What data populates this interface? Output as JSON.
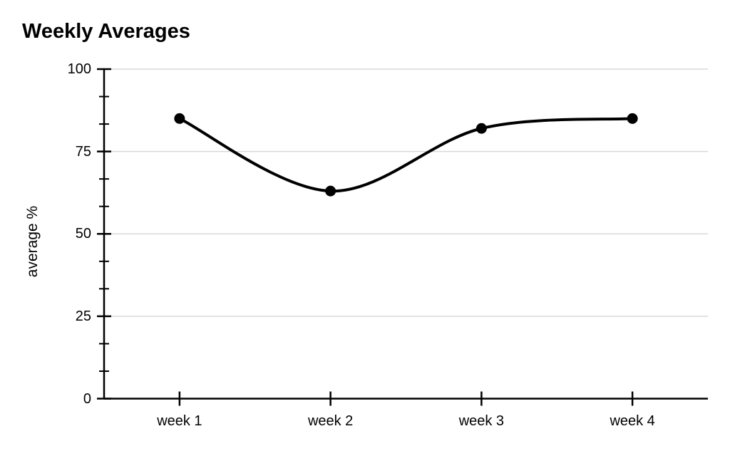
{
  "chart_data": {
    "type": "line",
    "smooth": true,
    "title": "Weekly Averages",
    "categories": [
      "week 1",
      "week 2",
      "week 3",
      "week 4"
    ],
    "values": [
      85,
      63,
      82,
      85
    ],
    "xlabel": "",
    "ylabel": "average %",
    "ylim": [
      0,
      100
    ],
    "yticks": [
      0,
      25,
      50,
      75,
      100
    ],
    "ytick_labels": [
      "0",
      "25",
      "50",
      "75",
      "100"
    ],
    "minor_ticks_per_interval": 2,
    "grid": "horizontal",
    "legend": "none",
    "colors": {
      "line": "#000000",
      "marker": "#000000",
      "axis": "#000000",
      "grid": "#d8d8d8",
      "text": "#000000",
      "background": "#ffffff"
    }
  }
}
